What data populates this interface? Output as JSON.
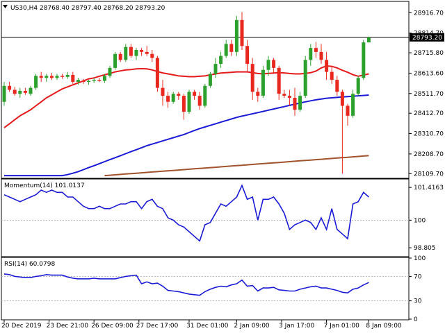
{
  "chart_data": [
    {
      "type": "candlestick",
      "title": "US30,H4  28768.40 28797.40 28768.20 28793.20",
      "symbol": "US30,H4",
      "ohlc_last": {
        "open": 28768.4,
        "high": 28797.4,
        "low": 28768.2,
        "close": 28793.2
      },
      "current_price_label": "28793.20",
      "ylim": [
        28090,
        28970
      ],
      "y_ticks": [
        "28916.70",
        "28814.70",
        "28715.80",
        "28613.60",
        "28511.70",
        "28412.70",
        "28310.70",
        "28208.70",
        "28109.70"
      ],
      "colors": {
        "up": "#2ca02c",
        "down": "#e8281e",
        "ma_fast": "#e41a1c",
        "ma_mid": "#1a1ad6",
        "ma_slow": "#a0522d",
        "price_line": "#000000"
      },
      "candles": [
        [
          28470,
          28570,
          28450,
          28550
        ],
        [
          28550,
          28570,
          28520,
          28530
        ],
        [
          28530,
          28545,
          28500,
          28510
        ],
        [
          28510,
          28540,
          28490,
          28525
        ],
        [
          28525,
          28540,
          28505,
          28515
        ],
        [
          28510,
          28550,
          28500,
          28540
        ],
        [
          28540,
          28610,
          28530,
          28600
        ],
        [
          28600,
          28620,
          28570,
          28590
        ],
        [
          28590,
          28610,
          28570,
          28600
        ],
        [
          28600,
          28615,
          28580,
          28590
        ],
        [
          28590,
          28610,
          28580,
          28600
        ],
        [
          28600,
          28610,
          28585,
          28595
        ],
        [
          28595,
          28620,
          28585,
          28605
        ],
        [
          28605,
          28620,
          28560,
          28570
        ],
        [
          28570,
          28590,
          28555,
          28580
        ],
        [
          28575,
          28585,
          28560,
          28570
        ],
        [
          28570,
          28580,
          28555,
          28575
        ],
        [
          28575,
          28590,
          28565,
          28580
        ],
        [
          28580,
          28590,
          28570,
          28575
        ],
        [
          28575,
          28610,
          28565,
          28600
        ],
        [
          28600,
          28650,
          28590,
          28640
        ],
        [
          28640,
          28720,
          28630,
          28710
        ],
        [
          28710,
          28720,
          28670,
          28680
        ],
        [
          28680,
          28760,
          28670,
          28745
        ],
        [
          28745,
          28760,
          28690,
          28700
        ],
        [
          28700,
          28740,
          28680,
          28730
        ],
        [
          28730,
          28740,
          28700,
          28720
        ],
        [
          28720,
          28750,
          28700,
          28710
        ],
        [
          28710,
          28730,
          28670,
          28690
        ],
        [
          28690,
          28700,
          28520,
          28540
        ],
        [
          28540,
          28580,
          28450,
          28500
        ],
        [
          28500,
          28520,
          28440,
          28470
        ],
        [
          28470,
          28520,
          28460,
          28510
        ],
        [
          28510,
          28520,
          28480,
          28500
        ],
        [
          28500,
          28510,
          28380,
          28420
        ],
        [
          28420,
          28530,
          28410,
          28520
        ],
        [
          28520,
          28530,
          28480,
          28500
        ],
        [
          28500,
          28520,
          28430,
          28450
        ],
        [
          28450,
          28560,
          28440,
          28550
        ],
        [
          28550,
          28620,
          28540,
          28610
        ],
        [
          28610,
          28690,
          28590,
          28660
        ],
        [
          28660,
          28720,
          28640,
          28700
        ],
        [
          28700,
          28780,
          28690,
          28760
        ],
        [
          28760,
          28780,
          28700,
          28720
        ],
        [
          28720,
          28900,
          28700,
          28880
        ],
        [
          28880,
          28920,
          28730,
          28750
        ],
        [
          28750,
          28780,
          28620,
          28660
        ],
        [
          28660,
          28690,
          28480,
          28520
        ],
        [
          28520,
          28540,
          28470,
          28500
        ],
        [
          28500,
          28650,
          28490,
          28630
        ],
        [
          28630,
          28700,
          28600,
          28680
        ],
        [
          28680,
          28690,
          28610,
          28640
        ],
        [
          28640,
          28650,
          28480,
          28510
        ],
        [
          28510,
          28530,
          28490,
          28500
        ],
        [
          28500,
          28530,
          28450,
          28490
        ],
        [
          28490,
          28540,
          28400,
          28430
        ],
        [
          28430,
          28520,
          28420,
          28500
        ],
        [
          28500,
          28700,
          28490,
          28680
        ],
        [
          28680,
          28760,
          28650,
          28740
        ],
        [
          28740,
          28770,
          28690,
          28720
        ],
        [
          28720,
          28760,
          28660,
          28680
        ],
        [
          28680,
          28720,
          28580,
          28620
        ],
        [
          28620,
          28650,
          28560,
          28580
        ],
        [
          28580,
          28600,
          28500,
          28520
        ],
        [
          28520,
          28530,
          28110,
          28450
        ],
        [
          28450,
          28460,
          28350,
          28400
        ],
        [
          28400,
          28530,
          28390,
          28510
        ],
        [
          28510,
          28600,
          28500,
          28590
        ],
        [
          28590,
          28780,
          28580,
          28768
        ],
        [
          28768,
          28797,
          28768,
          28793
        ]
      ],
      "ma_fast": [
        28340,
        28360,
        28380,
        28400,
        28415,
        28430,
        28450,
        28470,
        28490,
        28505,
        28520,
        28535,
        28545,
        28555,
        28565,
        28575,
        28585,
        28590,
        28598,
        28605,
        28612,
        28620,
        28625,
        28630,
        28632,
        28635,
        28636,
        28635,
        28630,
        28622,
        28615,
        28610,
        28605,
        28600,
        28598,
        28596,
        28596,
        28598,
        28600,
        28605,
        28610,
        28614,
        28616,
        28618,
        28620,
        28620,
        28620,
        28616,
        28612,
        28610,
        28612,
        28614,
        28616,
        28615,
        28612,
        28610,
        28610,
        28612,
        28616,
        28624,
        28640,
        28650,
        28648,
        28640,
        28628,
        28618,
        28606,
        28598,
        28604,
        28610
      ],
      "ma_mid": [
        28100,
        28100,
        28100,
        28100,
        28100,
        28100,
        28100,
        28100,
        28100,
        28100,
        28100,
        28100,
        28105,
        28112,
        28120,
        28130,
        28140,
        28150,
        28160,
        28170,
        28180,
        28190,
        28200,
        28210,
        28220,
        28230,
        28240,
        28250,
        28258,
        28266,
        28274,
        28282,
        28290,
        28298,
        28306,
        28316,
        28326,
        28336,
        28344,
        28352,
        28360,
        28368,
        28376,
        28384,
        28392,
        28398,
        28404,
        28410,
        28416,
        28422,
        28428,
        28434,
        28440,
        28446,
        28452,
        28458,
        28464,
        28470,
        28475,
        28480,
        28484,
        28488,
        28490,
        28492,
        28494,
        28496,
        28498,
        28500,
        28502,
        28504
      ],
      "ma_slow": [
        28100,
        28102,
        28104,
        28106,
        28108,
        28110,
        28112,
        28114,
        28116,
        28118,
        28120,
        28122,
        28124,
        28126,
        28128,
        28130,
        28132,
        28134,
        28136,
        28138,
        28140,
        28142,
        28144,
        28146,
        28148,
        28150,
        28152,
        28154,
        28156,
        28158,
        28160,
        28162,
        28164,
        28166,
        28168,
        28170,
        28172,
        28174,
        28176,
        28178,
        28180,
        28182,
        28184,
        28186,
        28188,
        28190,
        28192,
        28194,
        28196,
        28198,
        28200
      ]
    },
    {
      "type": "line",
      "title": "Momentum(14) 101.0137",
      "ylim": [
        98.45,
        101.75
      ],
      "y_ticks": [
        "101.4163",
        "100",
        "98.805"
      ],
      "dashed_level": 100,
      "color": "#1a1ad6",
      "values": [
        101.1,
        101.0,
        100.9,
        100.8,
        100.9,
        101.0,
        101.1,
        101.3,
        101.2,
        101.3,
        101.2,
        101.2,
        101.0,
        101.0,
        100.8,
        100.6,
        100.5,
        100.5,
        100.6,
        100.5,
        100.5,
        100.6,
        100.7,
        100.7,
        100.8,
        100.8,
        100.5,
        100.8,
        100.9,
        100.6,
        100.5,
        100.1,
        100.0,
        99.8,
        99.7,
        99.5,
        99.3,
        99.1,
        99.8,
        99.9,
        100.3,
        100.7,
        100.6,
        100.8,
        101.0,
        101.5,
        100.9,
        101.0,
        100.0,
        100.9,
        100.9,
        101.0,
        100.7,
        100.3,
        99.6,
        99.8,
        99.9,
        100.0,
        99.9,
        99.6,
        100.1,
        99.6,
        100.5,
        99.6,
        99.4,
        99.2,
        100.7,
        100.8,
        101.2,
        101.0
      ]
    },
    {
      "type": "line",
      "title": "RSI(14) 60.0798",
      "ylim": [
        0,
        100
      ],
      "y_ticks": [
        "100",
        "70",
        "30",
        "0"
      ],
      "dashed_levels": [
        70,
        30
      ],
      "color": "#1a1ad6",
      "values": [
        74,
        73,
        70,
        69,
        68,
        68,
        70,
        71,
        73,
        72,
        72,
        72,
        69,
        67,
        66,
        66,
        66,
        67,
        66,
        66,
        66,
        66,
        68,
        70,
        71,
        72,
        58,
        61,
        58,
        59,
        54,
        47,
        46,
        45,
        43,
        41,
        40,
        39,
        45,
        49,
        52,
        54,
        53,
        56,
        58,
        64,
        54,
        55,
        46,
        51,
        51,
        52,
        48,
        47,
        46,
        46,
        49,
        51,
        53,
        54,
        51,
        51,
        49,
        47,
        44,
        43,
        49,
        51,
        56,
        60
      ]
    }
  ],
  "x_tick_labels": [
    "20 Dec 2019",
    "23 Dec 21:00",
    "26 Dec 09:00",
    "27 Dec 17:00",
    "31 Dec 01:00",
    "2 Jan 09:00",
    "3 Jan 17:00",
    "7 Jan 01:00",
    "8 Jan 09:00"
  ]
}
